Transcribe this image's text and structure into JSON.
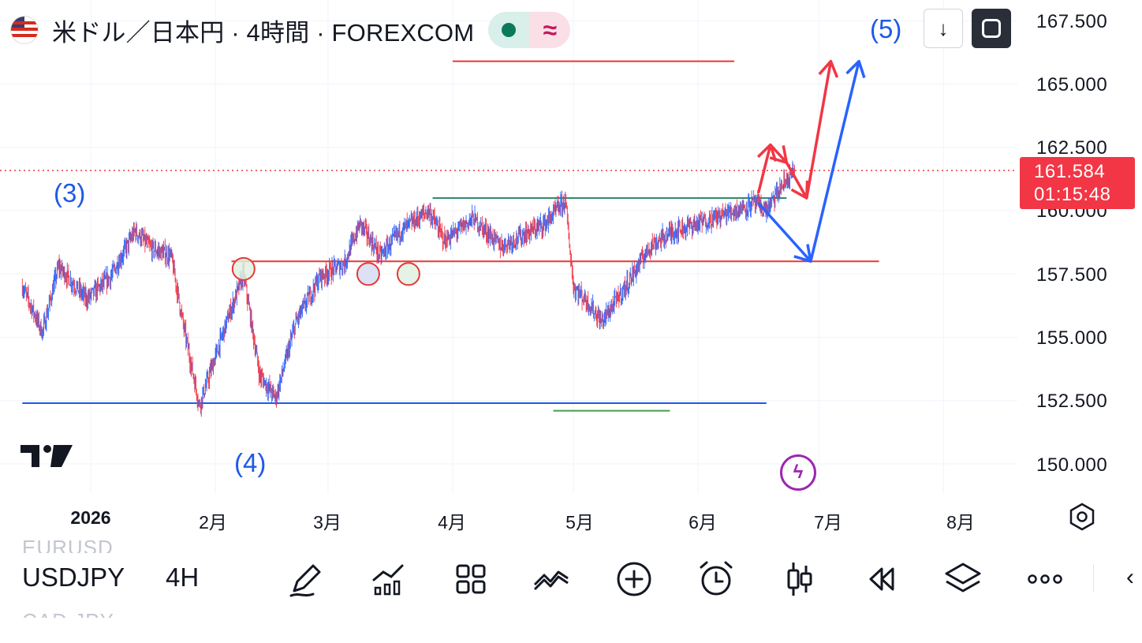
{
  "header": {
    "symbol_title": "米ドル／日本円 · 4時間 · FOREXCOM",
    "market_status_icon": "green-dot-icon",
    "data_status_icon": "approx-wave-icon"
  },
  "wave_labels": {
    "w3": "(3)",
    "w4": "(4)",
    "w5": "(5)"
  },
  "controls": {
    "down_icon": "arrow-down-icon",
    "down_glyph": "↓",
    "fullscreen_icon": "fullscreen-icon"
  },
  "price_axis": {
    "labels": [
      "167.500",
      "165.000",
      "162.500",
      "160.000",
      "157.500",
      "155.000",
      "152.500",
      "150.000"
    ],
    "last_price": "161.584",
    "countdown": "01:15:48"
  },
  "time_axis": {
    "labels": [
      "2026",
      "2月",
      "3月",
      "4月",
      "5月",
      "6月",
      "7月",
      "8月"
    ]
  },
  "chart_data": {
    "type": "candlestick",
    "symbol": "USDJPY",
    "interval": "4H",
    "ylim": [
      149.0,
      168.5
    ],
    "last_price": 161.584,
    "approx_close_path": [
      {
        "t": "2025-12-15",
        "v": 157.0
      },
      {
        "t": "2025-12-20",
        "v": 155.2
      },
      {
        "t": "2025-12-24",
        "v": 157.8
      },
      {
        "t": "2025-12-31",
        "v": 156.5
      },
      {
        "t": "2026-01-06",
        "v": 157.4
      },
      {
        "t": "2026-01-12",
        "v": 159.2
      },
      {
        "t": "2026-01-16",
        "v": 158.5
      },
      {
        "t": "2026-01-21",
        "v": 158.2
      },
      {
        "t": "2026-01-24",
        "v": 155.5
      },
      {
        "t": "2026-01-28",
        "v": 152.3
      },
      {
        "t": "2026-02-04",
        "v": 155.7
      },
      {
        "t": "2026-02-08",
        "v": 157.5
      },
      {
        "t": "2026-02-12",
        "v": 153.5
      },
      {
        "t": "2026-02-16",
        "v": 152.6
      },
      {
        "t": "2026-02-21",
        "v": 155.6
      },
      {
        "t": "2026-02-27",
        "v": 157.4
      },
      {
        "t": "2026-03-05",
        "v": 157.9
      },
      {
        "t": "2026-03-09",
        "v": 159.5
      },
      {
        "t": "2026-03-14",
        "v": 158.2
      },
      {
        "t": "2026-03-19",
        "v": 159.2
      },
      {
        "t": "2026-03-26",
        "v": 160.0
      },
      {
        "t": "2026-03-30",
        "v": 158.8
      },
      {
        "t": "2026-04-06",
        "v": 159.7
      },
      {
        "t": "2026-04-13",
        "v": 158.6
      },
      {
        "t": "2026-04-18",
        "v": 159.0
      },
      {
        "t": "2026-04-24",
        "v": 159.5
      },
      {
        "t": "2026-04-29",
        "v": 160.4
      },
      {
        "t": "2026-05-01",
        "v": 157.0
      },
      {
        "t": "2026-05-05",
        "v": 156.3
      },
      {
        "t": "2026-05-08",
        "v": 155.6
      },
      {
        "t": "2026-05-14",
        "v": 157.0
      },
      {
        "t": "2026-05-20",
        "v": 158.6
      },
      {
        "t": "2026-05-26",
        "v": 159.2
      },
      {
        "t": "2026-06-03",
        "v": 159.6
      },
      {
        "t": "2026-06-10",
        "v": 160.0
      },
      {
        "t": "2026-06-15",
        "v": 160.3
      },
      {
        "t": "2026-06-18",
        "v": 160.0
      },
      {
        "t": "2026-06-22",
        "v": 161.0
      },
      {
        "t": "2026-06-25",
        "v": 161.58
      }
    ],
    "horizontal_lines": [
      {
        "color": "#e53935",
        "price": 165.9,
        "from": "2026-04-01",
        "to": "2026-06-10"
      },
      {
        "color": "#2e8b6a",
        "price": 160.5,
        "from": "2026-03-27",
        "to": "2026-06-23"
      },
      {
        "color": "#e53935",
        "price": 158.0,
        "from": "2026-02-05",
        "to": "2026-07-16"
      },
      {
        "color": "#1e5ae6",
        "price": 152.4,
        "from": "2025-12-15",
        "to": "2026-06-18"
      },
      {
        "color": "#43a047",
        "price": 152.1,
        "from": "2026-04-26",
        "to": "2026-05-25"
      }
    ],
    "circles": [
      {
        "t": "2026-02-08",
        "price": 157.7,
        "fill": "#dff1e0",
        "stroke": "#e53935"
      },
      {
        "t": "2026-03-11",
        "price": 157.5,
        "fill": "#d6dcf3",
        "stroke": "#e53935"
      },
      {
        "t": "2026-03-21",
        "price": 157.5,
        "fill": "#dff1e0",
        "stroke": "#e53935"
      }
    ],
    "projection_paths": [
      {
        "color": "#f23645",
        "points": [
          {
            "t": "2026-06-16",
            "price": 160.7
          },
          {
            "t": "2026-06-19",
            "price": 162.6
          },
          {
            "t": "2026-06-23",
            "price": 161.9
          },
          {
            "t": "2026-06-28",
            "price": 160.5
          },
          {
            "t": "2026-07-04",
            "price": 165.9
          }
        ]
      },
      {
        "color": "#2962ff",
        "points": [
          {
            "t": "2026-06-16",
            "price": 160.3
          },
          {
            "t": "2026-06-29",
            "price": 158.0
          },
          {
            "t": "2026-07-11",
            "price": 165.9
          }
        ]
      }
    ]
  },
  "toolbar": {
    "symbol": "USDJPY",
    "interval": "4H",
    "ghost_prev_symbol": "EURUSD",
    "ghost_next_symbol": "CAD JPY",
    "icons": [
      "draw-pen-icon",
      "indicators-icon",
      "layout-grid-icon",
      "alerts-chart-icon",
      "add-icon",
      "alarm-clock-icon",
      "candle-type-icon",
      "replay-icon",
      "layers-icon",
      "more-icon"
    ],
    "collapse_glyph": "‹"
  },
  "colors": {
    "up": "#2962ff",
    "down": "#f23645",
    "last_price_tag": "#f23645",
    "flash": "#9c27b0"
  }
}
